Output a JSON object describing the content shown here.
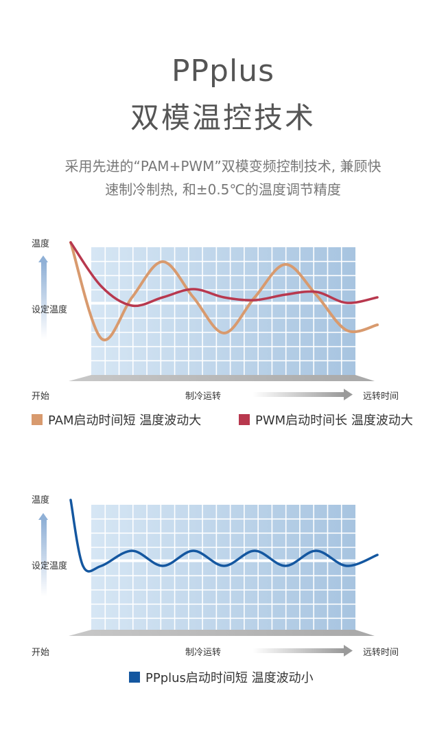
{
  "header": {
    "title_line1": "PPplus",
    "title_line2": "双模温控技术",
    "subtitle_line1": "采用先进的“PAM+PWM”双模变频控制技术, 兼顾快",
    "subtitle_line2": "速制冷制热, 和±0.5℃的温度调节精度"
  },
  "chart_data": [
    {
      "type": "line",
      "ylabel": "温度",
      "y_reference_label": "设定温度",
      "x_start_label": "开始",
      "x_mid_label": "制冷运转",
      "x_end_label": "远转时间",
      "series": [
        {
          "name": "PAM启动时间短 温度波动大",
          "color": "#d89a6e",
          "x": [
            0,
            0.1,
            0.2,
            0.3,
            0.4,
            0.5,
            0.6,
            0.7,
            0.8,
            0.9,
            1.0
          ],
          "values": [
            2.2,
            -1.3,
            0.2,
            1.5,
            0.2,
            -1.1,
            0.2,
            1.4,
            0.3,
            -1.0,
            -0.8
          ]
        },
        {
          "name": "PWM启动时间长 温度波动大",
          "color": "#b8384e",
          "x": [
            0,
            0.1,
            0.2,
            0.3,
            0.4,
            0.5,
            0.6,
            0.7,
            0.8,
            0.9,
            1.0
          ],
          "values": [
            2.2,
            0.6,
            -0.1,
            0.2,
            0.5,
            0.2,
            0.1,
            0.3,
            0.4,
            0.0,
            0.2
          ]
        }
      ]
    },
    {
      "type": "line",
      "ylabel": "温度",
      "y_reference_label": "设定温度",
      "x_start_label": "开始",
      "x_mid_label": "制冷运转",
      "x_end_label": "远转时间",
      "series": [
        {
          "name": "PPplus启动时间短 温度波动小",
          "color": "#1457a0",
          "x": [
            0,
            0.04,
            0.1,
            0.2,
            0.3,
            0.4,
            0.5,
            0.6,
            0.7,
            0.8,
            0.9,
            1.0
          ],
          "values": [
            2.2,
            -0.2,
            -0.2,
            0.35,
            -0.2,
            0.35,
            -0.2,
            0.35,
            -0.2,
            0.35,
            -0.2,
            0.2
          ]
        }
      ]
    }
  ]
}
